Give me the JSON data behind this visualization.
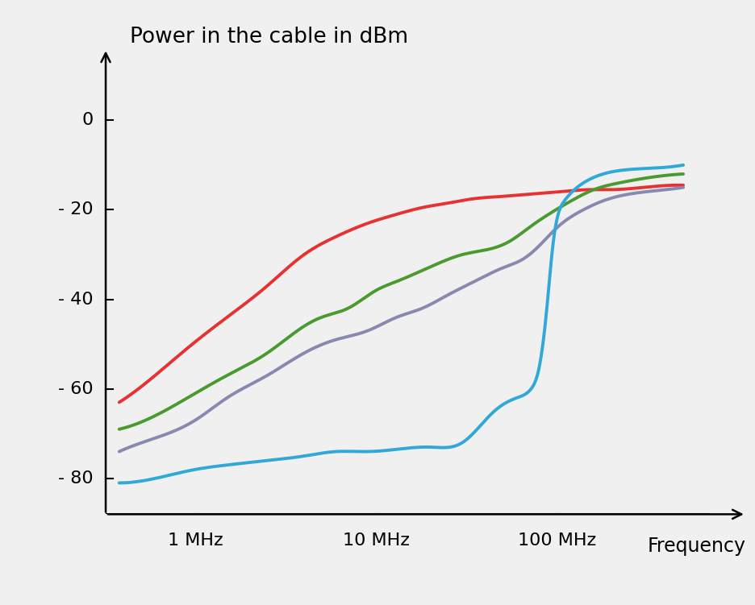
{
  "title": "Power in the cable in dBm",
  "xlabel": "Frequency",
  "background_color": "#f0f0f0",
  "fig_background": "#f0f0f0",
  "xlim_log": [
    0.32,
    700
  ],
  "ylim": [
    -88,
    12
  ],
  "yticks": [
    0,
    -20,
    -40,
    -60,
    -80
  ],
  "ytick_labels": [
    "0",
    "- 20",
    "- 40",
    "- 60",
    "- 80"
  ],
  "xticks_mhz": [
    1,
    10,
    100
  ],
  "xtick_labels": [
    "1 MHz",
    "10 MHz",
    "100 MHz"
  ],
  "curves": {
    "red": {
      "color": "#e63232",
      "x_mhz": [
        0.38,
        0.6,
        0.9,
        1.5,
        2.5,
        4,
        6,
        9,
        13,
        18,
        25,
        35,
        50,
        70,
        100,
        150,
        200,
        300,
        500
      ],
      "y": [
        -63,
        -57,
        -51,
        -44,
        -37,
        -30,
        -26,
        -23,
        -21,
        -19.5,
        -18.5,
        -17.5,
        -17,
        -16.5,
        -16,
        -15.5,
        -15.5,
        -15,
        -14.5
      ]
    },
    "green": {
      "color": "#4a9a30",
      "x_mhz": [
        0.38,
        0.6,
        1.0,
        1.5,
        2.5,
        4,
        5,
        7,
        10,
        13,
        17,
        22,
        30,
        40,
        55,
        70,
        90,
        120,
        160,
        220,
        300,
        500
      ],
      "y": [
        -69,
        -66,
        -61,
        -57,
        -52,
        -46,
        -44,
        -42,
        -38,
        -36,
        -34,
        -32,
        -30,
        -29,
        -27,
        -24,
        -21,
        -18,
        -15.5,
        -14,
        -13,
        -12
      ]
    },
    "purple": {
      "color": "#8888b0",
      "x_mhz": [
        0.38,
        0.6,
        1.0,
        1.5,
        2.5,
        4,
        6,
        9,
        13,
        18,
        25,
        35,
        50,
        65,
        80,
        100,
        140,
        180,
        250,
        400,
        500
      ],
      "y": [
        -74,
        -71,
        -67,
        -62,
        -57,
        -52,
        -49,
        -47,
        -44,
        -42,
        -39,
        -36,
        -33,
        -31,
        -28,
        -24,
        -20,
        -18,
        -16.5,
        -15.5,
        -15
      ]
    },
    "cyan": {
      "color": "#30a8d8",
      "x_mhz": [
        0.38,
        0.6,
        1.0,
        1.5,
        2.5,
        4,
        6,
        9,
        13,
        20,
        30,
        45,
        60,
        72,
        80,
        88,
        95,
        110,
        140,
        180,
        250,
        400,
        500
      ],
      "y": [
        -81,
        -80,
        -78,
        -77,
        -76,
        -75,
        -74,
        -74,
        -73.5,
        -73,
        -72,
        -65,
        -62,
        -60,
        -55,
        -42,
        -28,
        -18,
        -14,
        -12,
        -11,
        -10.5,
        -10
      ]
    }
  },
  "linewidth": 2.8,
  "title_fontsize": 19,
  "label_fontsize": 17,
  "tick_fontsize": 16
}
